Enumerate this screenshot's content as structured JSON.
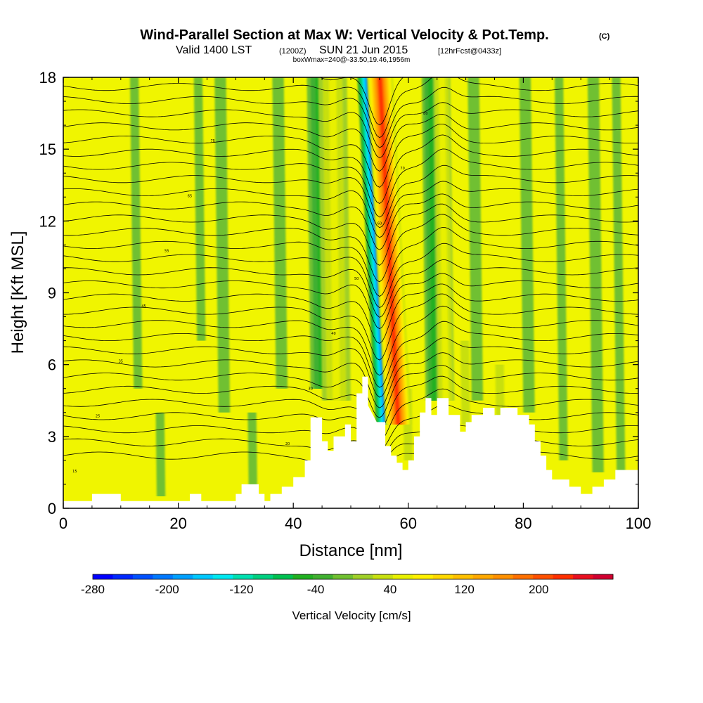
{
  "title": {
    "main": "Wind-Parallel Section at Max W: Vertical Velocity & Pot.Temp.",
    "units_tag": "(C)",
    "valid_prefix": "Valid 1400 LST",
    "valid_utc": "(1200Z)",
    "valid_date": "SUN 21 Jun 2015",
    "forecast": "[12hrFcst@0433z]",
    "box_info": "boxWmax=240@-33.50,19.46,1956m"
  },
  "chart_data": {
    "type": "heatmap",
    "title": "Wind-Parallel Section at Max W: Vertical Velocity & Pot.Temp.",
    "xlabel": "Distance [nm]",
    "ylabel": "Height [Kft MSL]",
    "xlim": [
      0,
      100
    ],
    "ylim": [
      0,
      18
    ],
    "x_ticks": [
      "0",
      "20",
      "40",
      "60",
      "80",
      "100"
    ],
    "y_ticks": [
      "0",
      "3",
      "6",
      "9",
      "12",
      "15",
      "18"
    ],
    "colorbar": {
      "label": "Vertical Velocity [cm/s]",
      "min": -300,
      "max": 300,
      "step": 20,
      "tick_values": [
        -280,
        -200,
        -120,
        -40,
        40,
        120,
        200
      ],
      "tick_labels": [
        "-280",
        "-200",
        "-120",
        "-40",
        "40",
        "120",
        "200"
      ],
      "colors": [
        "#0000ff",
        "#0028ff",
        "#0050ff",
        "#0078ff",
        "#00a0ff",
        "#00c8ff",
        "#00e8f0",
        "#00e0b0",
        "#00d080",
        "#00c050",
        "#20b020",
        "#40b030",
        "#70c030",
        "#a0d028",
        "#c8e010",
        "#e8f000",
        "#fff000",
        "#ffd800",
        "#ffc000",
        "#ffa800",
        "#ff9000",
        "#ff7000",
        "#ff5000",
        "#ff3000",
        "#e81020",
        "#d00030"
      ]
    },
    "background_value_cm_s": 0,
    "updrafts": [
      {
        "x0": 56,
        "x1": 60.5,
        "y_bottom": 3.5,
        "y_top": 18,
        "peak": 240
      },
      {
        "x0": 45,
        "x1": 50,
        "y_bottom": 4.5,
        "y_top": 18,
        "peak": 60
      },
      {
        "x0": 65,
        "x1": 68,
        "y_bottom": 4.5,
        "y_top": 18,
        "peak": 70
      }
    ],
    "downdrafts": [
      {
        "x0": 54.3,
        "x1": 58,
        "y_bottom": 3.5,
        "y_top": 18,
        "peak": -220
      },
      {
        "x0": 43,
        "x1": 47,
        "y_bottom": 5,
        "y_top": 18,
        "peak": -60
      },
      {
        "x0": 63,
        "x1": 66,
        "y_bottom": 4.5,
        "y_top": 18,
        "peak": -60
      }
    ],
    "weak_bands": [
      {
        "x": 13,
        "width": 1.5,
        "y_bottom": 5,
        "y_top": 18,
        "value": -20
      },
      {
        "x": 24,
        "width": 1.5,
        "y_bottom": 7,
        "y_top": 18,
        "value": -20
      },
      {
        "x": 28,
        "width": 2,
        "y_bottom": 4,
        "y_top": 18,
        "value": -20
      },
      {
        "x": 38,
        "width": 2,
        "y_bottom": 5,
        "y_top": 18,
        "value": -20
      },
      {
        "x": 72,
        "width": 2,
        "y_bottom": 4.5,
        "y_top": 18,
        "value": -20
      },
      {
        "x": 81,
        "width": 2,
        "y_bottom": 4,
        "y_top": 18,
        "value": -20
      },
      {
        "x": 87,
        "width": 1.5,
        "y_bottom": 2,
        "y_top": 18,
        "value": -20
      },
      {
        "x": 93,
        "width": 2,
        "y_bottom": 1.5,
        "y_top": 18,
        "value": -20
      },
      {
        "x": 97,
        "width": 1.5,
        "y_bottom": 1,
        "y_top": 18,
        "value": -20
      },
      {
        "x": 17,
        "width": 1.5,
        "y_bottom": 0.5,
        "y_top": 4,
        "value": -20
      },
      {
        "x": 33,
        "width": 1.5,
        "y_bottom": 0.5,
        "y_top": 4,
        "value": -20
      },
      {
        "x": 60,
        "width": 1.5,
        "y_bottom": 2,
        "y_top": 5,
        "value": 40
      },
      {
        "x": 70,
        "width": 1.5,
        "y_bottom": 3.5,
        "y_top": 7,
        "value": 40
      },
      {
        "x": 76,
        "width": 1.5,
        "y_bottom": 3.5,
        "y_top": 6,
        "value": 40
      }
    ],
    "terrain_profile_kft": [
      [
        0,
        0.3
      ],
      [
        5,
        0.3
      ],
      [
        5,
        0.6
      ],
      [
        10,
        0.6
      ],
      [
        10,
        0.3
      ],
      [
        22,
        0.3
      ],
      [
        22,
        0.6
      ],
      [
        24,
        0.6
      ],
      [
        24,
        0.3
      ],
      [
        30,
        0.3
      ],
      [
        30,
        0.6
      ],
      [
        31,
        0.6
      ],
      [
        31,
        1.0
      ],
      [
        34,
        1.0
      ],
      [
        34,
        0.6
      ],
      [
        35,
        0.6
      ],
      [
        35,
        0.3
      ],
      [
        36,
        0.3
      ],
      [
        36,
        0.6
      ],
      [
        38,
        0.6
      ],
      [
        38,
        0.9
      ],
      [
        40,
        0.9
      ],
      [
        40,
        1.3
      ],
      [
        42,
        1.3
      ],
      [
        42,
        2.0
      ],
      [
        43,
        2.0
      ],
      [
        43,
        3.8
      ],
      [
        45,
        3.8
      ],
      [
        45,
        2.8
      ],
      [
        46,
        2.8
      ],
      [
        46,
        2.4
      ],
      [
        47,
        2.4
      ],
      [
        47,
        3.0
      ],
      [
        49,
        3.0
      ],
      [
        49,
        3.5
      ],
      [
        50,
        3.5
      ],
      [
        50,
        2.8
      ],
      [
        51,
        2.8
      ],
      [
        51,
        4.8
      ],
      [
        52,
        4.8
      ],
      [
        52,
        5.5
      ],
      [
        53,
        5.5
      ],
      [
        53,
        4.3
      ],
      [
        54.5,
        3.6
      ],
      [
        56,
        3.6
      ],
      [
        56,
        2.6
      ],
      [
        57,
        2.6
      ],
      [
        57,
        2.2
      ],
      [
        58,
        2.2
      ],
      [
        58,
        1.9
      ],
      [
        59,
        1.9
      ],
      [
        59,
        1.6
      ],
      [
        60,
        1.6
      ],
      [
        60,
        2.0
      ],
      [
        61,
        2.0
      ],
      [
        61,
        3.0
      ],
      [
        62,
        3.0
      ],
      [
        62,
        4.0
      ],
      [
        63,
        4.0
      ],
      [
        63,
        4.6
      ],
      [
        64,
        4.6
      ],
      [
        64,
        3.9
      ],
      [
        65,
        3.9
      ],
      [
        65,
        4.6
      ],
      [
        67,
        4.6
      ],
      [
        67,
        3.9
      ],
      [
        69,
        3.9
      ],
      [
        69,
        3.2
      ],
      [
        70,
        3.2
      ],
      [
        70,
        3.6
      ],
      [
        71,
        3.6
      ],
      [
        71,
        3.9
      ],
      [
        73,
        3.9
      ],
      [
        73,
        4.2
      ],
      [
        75,
        4.2
      ],
      [
        75,
        3.9
      ],
      [
        76,
        3.9
      ],
      [
        76,
        4.2
      ],
      [
        79,
        4.2
      ],
      [
        79,
        3.9
      ],
      [
        81,
        3.9
      ],
      [
        81,
        3.5
      ],
      [
        82,
        3.5
      ],
      [
        82,
        2.8
      ],
      [
        83,
        2.8
      ],
      [
        83,
        2.2
      ],
      [
        84,
        2.2
      ],
      [
        84,
        1.6
      ],
      [
        85,
        1.6
      ],
      [
        85,
        1.2
      ],
      [
        88,
        1.2
      ],
      [
        88,
        0.9
      ],
      [
        90,
        0.9
      ],
      [
        90,
        0.6
      ],
      [
        92,
        0.6
      ],
      [
        92,
        0.9
      ],
      [
        94,
        0.9
      ],
      [
        94,
        1.2
      ],
      [
        96,
        1.2
      ],
      [
        96,
        1.6
      ],
      [
        100,
        1.6
      ],
      [
        100,
        0
      ]
    ],
    "pot_temp_contours": {
      "count": 30,
      "base_height_kft": 2.2,
      "spacing_kft": 0.55,
      "wave_center_nm": 55,
      "wave_amplitude_kft": -2.0,
      "label_values": [
        "15",
        "20",
        "25",
        "30",
        "35",
        "40",
        "45",
        "50",
        "55",
        "60",
        "65",
        "70",
        "75",
        "80"
      ]
    }
  }
}
